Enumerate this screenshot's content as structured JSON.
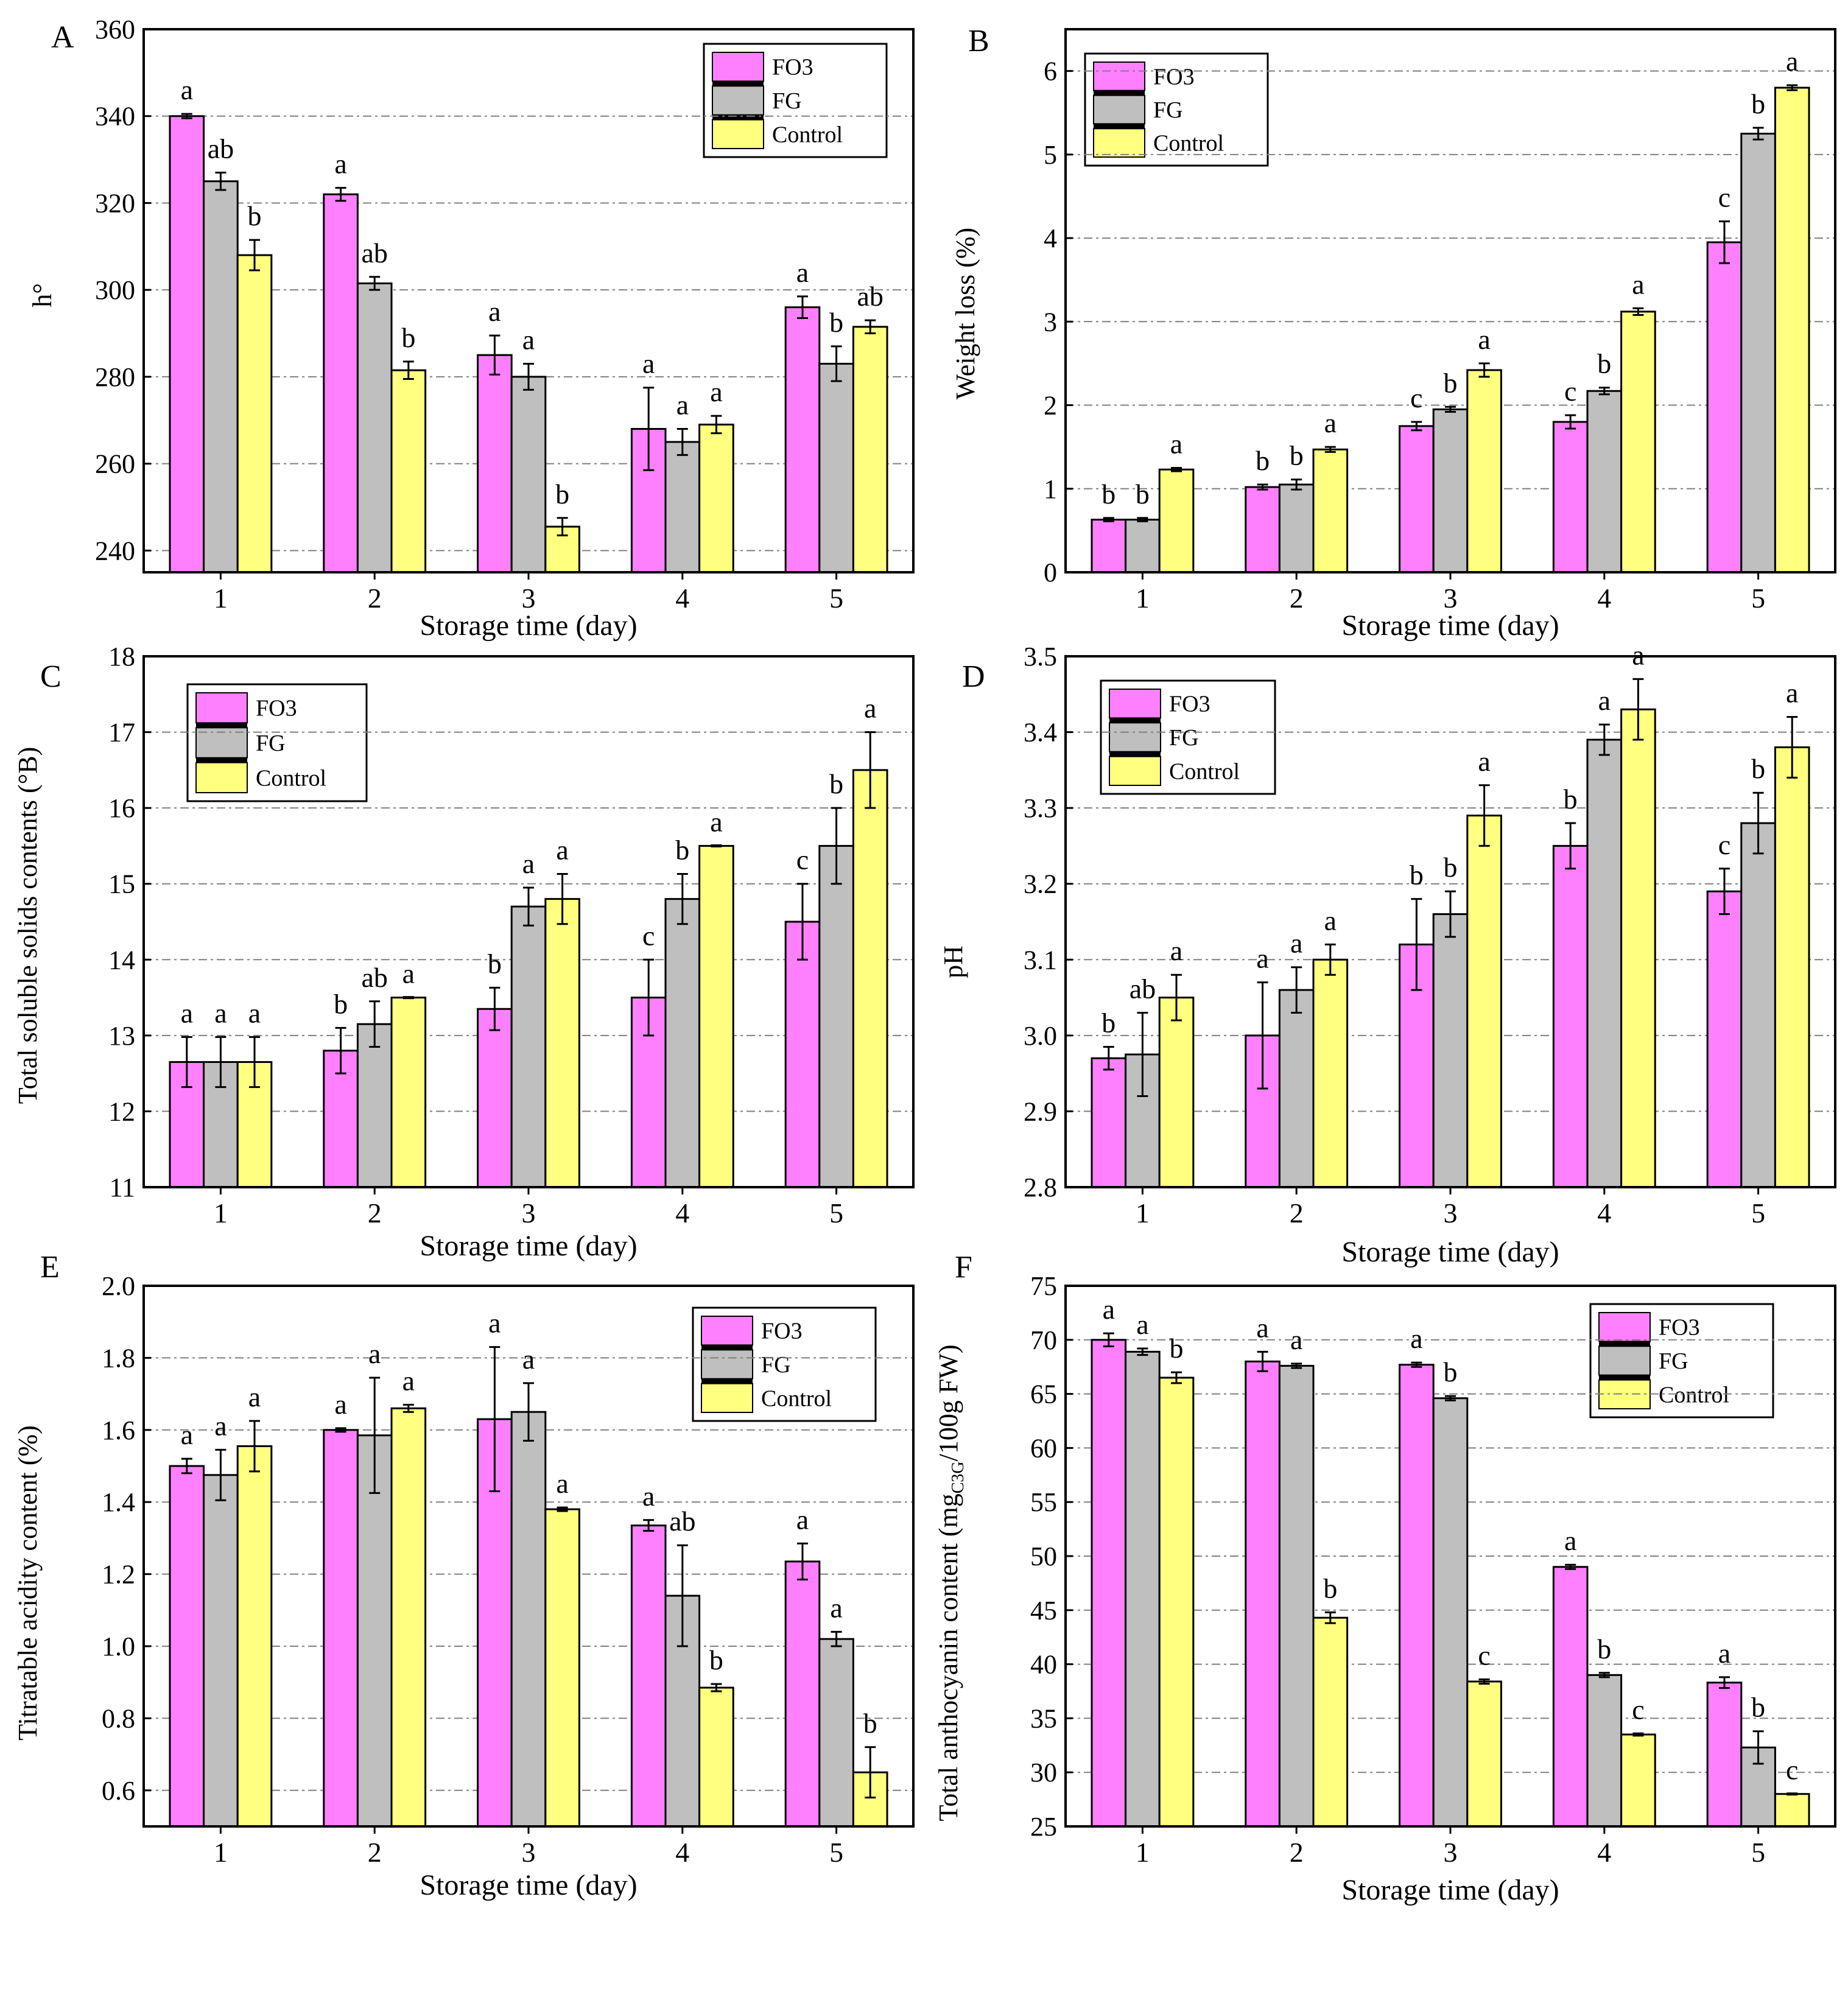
{
  "colors": {
    "FO3": "#ff80ff",
    "FG": "#bfbfbf",
    "Control": "#ffff80",
    "grid": "#808080"
  },
  "chart_data": [
    {
      "panel": "A",
      "type": "bar",
      "title": "",
      "xlabel": "Storage time (day)",
      "ylabel": "h°",
      "categories": [
        "1",
        "2",
        "3",
        "4",
        "5"
      ],
      "ylim": [
        235,
        360
      ],
      "yticks": [
        240,
        260,
        280,
        300,
        320,
        340,
        360
      ],
      "grid": true,
      "legend_position": "top-right",
      "series": [
        {
          "name": "FO3",
          "values": [
            340,
            322,
            285,
            268,
            296
          ],
          "errors": [
            0.5,
            1.5,
            4.5,
            9.5,
            2.5
          ],
          "letters": [
            "a",
            "a",
            "a",
            "a",
            "a"
          ]
        },
        {
          "name": "FG",
          "values": [
            325,
            301.5,
            280,
            265,
            283
          ],
          "errors": [
            2,
            1.5,
            3,
            3,
            4
          ],
          "letters": [
            "ab",
            "ab",
            "a",
            "a",
            "b"
          ]
        },
        {
          "name": "Control",
          "values": [
            308,
            281.5,
            245.5,
            269,
            291.5
          ],
          "errors": [
            3.5,
            2,
            2,
            2,
            1.5
          ],
          "letters": [
            "b",
            "b",
            "b",
            "a",
            "ab"
          ]
        }
      ]
    },
    {
      "panel": "B",
      "type": "bar",
      "title": "",
      "xlabel": "Storage time (day)",
      "ylabel": "Weight loss (%)",
      "categories": [
        "1",
        "2",
        "3",
        "4",
        "5"
      ],
      "ylim": [
        0,
        6.5
      ],
      "yticks": [
        0,
        1,
        2,
        3,
        4,
        5,
        6
      ],
      "grid": true,
      "legend_position": "top-left",
      "series": [
        {
          "name": "FO3",
          "values": [
            0.63,
            1.02,
            1.75,
            1.8,
            3.95
          ],
          "errors": [
            0.02,
            0.03,
            0.05,
            0.08,
            0.25
          ],
          "letters": [
            "b",
            "b",
            "c",
            "c",
            "c"
          ]
        },
        {
          "name": "FG",
          "values": [
            0.63,
            1.05,
            1.95,
            2.17,
            5.25
          ],
          "errors": [
            0.02,
            0.06,
            0.03,
            0.04,
            0.07
          ],
          "letters": [
            "b",
            "b",
            "b",
            "b",
            "b"
          ]
        },
        {
          "name": "Control",
          "values": [
            1.23,
            1.47,
            2.42,
            3.12,
            5.8
          ],
          "errors": [
            0.02,
            0.03,
            0.08,
            0.04,
            0.03
          ],
          "letters": [
            "a",
            "a",
            "a",
            "a",
            "a"
          ]
        }
      ]
    },
    {
      "panel": "C",
      "type": "bar",
      "title": "",
      "xlabel": "Storage time (day)",
      "ylabel": "Total soluble solids contents (°B)",
      "categories": [
        "1",
        "2",
        "3",
        "4",
        "5"
      ],
      "ylim": [
        11,
        18
      ],
      "yticks": [
        11,
        12,
        13,
        14,
        15,
        16,
        17,
        18
      ],
      "grid": true,
      "legend_position": "top-left",
      "series": [
        {
          "name": "FO3",
          "values": [
            12.65,
            12.8,
            13.35,
            13.5,
            14.5
          ],
          "errors": [
            0.33,
            0.3,
            0.28,
            0.5,
            0.5
          ],
          "letters": [
            "a",
            "b",
            "b",
            "c",
            "c"
          ]
        },
        {
          "name": "FG",
          "values": [
            12.65,
            13.15,
            14.7,
            14.8,
            15.5
          ],
          "errors": [
            0.33,
            0.3,
            0.25,
            0.33,
            0.5
          ],
          "letters": [
            "a",
            "ab",
            "a",
            "b",
            "b"
          ]
        },
        {
          "name": "Control",
          "values": [
            12.65,
            13.5,
            14.8,
            15.5,
            16.5
          ],
          "errors": [
            0.33,
            0,
            0.33,
            0,
            0.5
          ],
          "letters": [
            "a",
            "a",
            "a",
            "a",
            "a"
          ]
        }
      ]
    },
    {
      "panel": "D",
      "type": "bar",
      "title": "",
      "xlabel": "Storage time (day)",
      "ylabel": "pH",
      "categories": [
        "1",
        "2",
        "3",
        "4",
        "5"
      ],
      "ylim": [
        2.8,
        3.5
      ],
      "yticks": [
        2.8,
        2.9,
        3.0,
        3.1,
        3.2,
        3.3,
        3.4,
        3.5
      ],
      "grid": true,
      "legend_position": "top-left",
      "series": [
        {
          "name": "FO3",
          "values": [
            2.97,
            3.0,
            3.12,
            3.25,
            3.19
          ],
          "errors": [
            0.015,
            0.07,
            0.06,
            0.03,
            0.03
          ],
          "letters": [
            "b",
            "a",
            "b",
            "b",
            "c"
          ]
        },
        {
          "name": "FG",
          "values": [
            2.975,
            3.06,
            3.16,
            3.39,
            3.28
          ],
          "errors": [
            0.055,
            0.03,
            0.03,
            0.02,
            0.04
          ],
          "letters": [
            "ab",
            "a",
            "b",
            "a",
            "b"
          ]
        },
        {
          "name": "Control",
          "values": [
            3.05,
            3.1,
            3.29,
            3.43,
            3.38
          ],
          "errors": [
            0.03,
            0.02,
            0.04,
            0.04,
            0.04
          ],
          "letters": [
            "a",
            "a",
            "a",
            "a",
            "a"
          ]
        }
      ]
    },
    {
      "panel": "E",
      "type": "bar",
      "title": "",
      "xlabel": "Storage time (day)",
      "ylabel": "Titratable acidity content (%)",
      "categories": [
        "1",
        "2",
        "3",
        "4",
        "5"
      ],
      "ylim": [
        0.5,
        2.0
      ],
      "yticks": [
        0.6,
        0.8,
        1.0,
        1.2,
        1.4,
        1.6,
        1.8,
        2.0
      ],
      "grid": true,
      "legend_position": "top-right",
      "series": [
        {
          "name": "FO3",
          "values": [
            1.5,
            1.6,
            1.63,
            1.335,
            1.235
          ],
          "errors": [
            0.02,
            0.005,
            0.2,
            0.015,
            0.05
          ],
          "letters": [
            "a",
            "a",
            "a",
            "a",
            "a"
          ]
        },
        {
          "name": "FG",
          "values": [
            1.475,
            1.585,
            1.65,
            1.14,
            1.02
          ],
          "errors": [
            0.07,
            0.16,
            0.08,
            0.14,
            0.02
          ],
          "letters": [
            "a",
            "a",
            "a",
            "ab",
            "a"
          ]
        },
        {
          "name": "Control",
          "values": [
            1.555,
            1.66,
            1.38,
            0.885,
            0.65
          ],
          "errors": [
            0.07,
            0.01,
            0.005,
            0.01,
            0.07
          ],
          "letters": [
            "a",
            "a",
            "a",
            "b",
            "b"
          ]
        }
      ]
    },
    {
      "panel": "F",
      "type": "bar",
      "title": "",
      "xlabel": "Storage time (day)",
      "ylabel_main": "Total anthocyanin content (mg",
      "ylabel_sub": "C3G",
      "ylabel_end": "/100g FW)",
      "categories": [
        "1",
        "2",
        "3",
        "4",
        "5"
      ],
      "ylim": [
        25,
        75
      ],
      "yticks": [
        25,
        30,
        35,
        40,
        45,
        50,
        55,
        60,
        65,
        70,
        75
      ],
      "grid": true,
      "legend_position": "top-right",
      "series": [
        {
          "name": "FO3",
          "values": [
            70,
            68,
            67.7,
            49,
            38.3
          ],
          "errors": [
            0.6,
            0.9,
            0.2,
            0.2,
            0.5
          ],
          "letters": [
            "a",
            "a",
            "a",
            "a",
            "a"
          ]
        },
        {
          "name": "FG",
          "values": [
            68.9,
            67.6,
            64.6,
            39,
            32.3
          ],
          "errors": [
            0.3,
            0.2,
            0.2,
            0.2,
            1.5
          ],
          "letters": [
            "a",
            "a",
            "b",
            "b",
            "b"
          ]
        },
        {
          "name": "Control",
          "values": [
            66.5,
            44.3,
            38.4,
            33.5,
            28
          ],
          "errors": [
            0.5,
            0.5,
            0.2,
            0.1,
            0
          ],
          "letters": [
            "b",
            "b",
            "c",
            "c",
            "c"
          ]
        }
      ]
    }
  ]
}
